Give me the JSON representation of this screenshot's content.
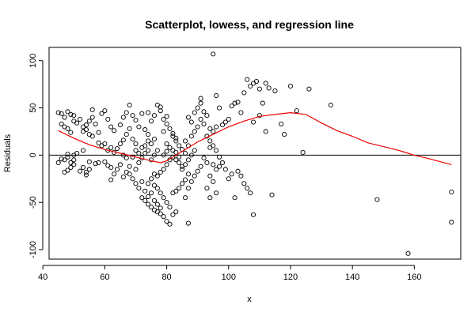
{
  "chart_data": {
    "type": "scatter",
    "title": "Scatterplot, lowess, and regression line",
    "xlabel": "x",
    "ylabel": "Residuals",
    "xlim": [
      42,
      175
    ],
    "ylim": [
      -110,
      114
    ],
    "xticks": [
      40,
      60,
      80,
      100,
      120,
      140,
      160
    ],
    "yticks": [
      -100,
      -50,
      0,
      50,
      100
    ],
    "grid": false,
    "regression_line_y": 0,
    "colors": {
      "points": "#000000",
      "lowess": "#ee0000",
      "regression": "#000000"
    },
    "points": [
      [
        45,
        45
      ],
      [
        46,
        44
      ],
      [
        47,
        40
      ],
      [
        48,
        46
      ],
      [
        49,
        43
      ],
      [
        50,
        42
      ],
      [
        50,
        36
      ],
      [
        52,
        38
      ],
      [
        46,
        33
      ],
      [
        47,
        30
      ],
      [
        48,
        28
      ],
      [
        49,
        24
      ],
      [
        51,
        34
      ],
      [
        53,
        30
      ],
      [
        54,
        27
      ],
      [
        55,
        22
      ],
      [
        53,
        25
      ],
      [
        56,
        20
      ],
      [
        54,
        32
      ],
      [
        55,
        36
      ],
      [
        56,
        40
      ],
      [
        57,
        33
      ],
      [
        58,
        24
      ],
      [
        56,
        48
      ],
      [
        59,
        44
      ],
      [
        60,
        47
      ],
      [
        61,
        38
      ],
      [
        62,
        30
      ],
      [
        63,
        26
      ],
      [
        58,
        13
      ],
      [
        59,
        10
      ],
      [
        60,
        12
      ],
      [
        61,
        5
      ],
      [
        62,
        8
      ],
      [
        63,
        3
      ],
      [
        60,
        -7
      ],
      [
        61,
        -11
      ],
      [
        62,
        -13
      ],
      [
        58,
        -8
      ],
      [
        57,
        -9
      ],
      [
        55,
        -7
      ],
      [
        53,
        -13
      ],
      [
        52,
        -17
      ],
      [
        54,
        -21
      ],
      [
        55,
        -15
      ],
      [
        54,
        -18
      ],
      [
        47,
        -5
      ],
      [
        48,
        -2
      ],
      [
        49,
        -8
      ],
      [
        50,
        -10
      ],
      [
        46,
        -4
      ],
      [
        45,
        -8
      ],
      [
        48,
        -16
      ],
      [
        47,
        -18
      ],
      [
        49,
        -13
      ],
      [
        50,
        -5
      ],
      [
        51,
        2
      ],
      [
        53,
        5
      ],
      [
        50,
        0
      ],
      [
        48,
        1
      ],
      [
        64,
        7
      ],
      [
        65,
        12
      ],
      [
        66,
        16
      ],
      [
        67,
        22
      ],
      [
        65,
        32
      ],
      [
        66,
        40
      ],
      [
        67,
        45
      ],
      [
        68,
        53
      ],
      [
        69,
        42
      ],
      [
        70,
        37
      ],
      [
        71,
        30
      ],
      [
        68,
        28
      ],
      [
        69,
        17
      ],
      [
        70,
        12
      ],
      [
        66,
        0
      ],
      [
        67,
        -3
      ],
      [
        65,
        -10
      ],
      [
        64,
        -15
      ],
      [
        63,
        -20
      ],
      [
        62,
        -26
      ],
      [
        66,
        -23
      ],
      [
        67,
        -18
      ],
      [
        68,
        -20
      ],
      [
        69,
        -25
      ],
      [
        70,
        -30
      ],
      [
        71,
        -35
      ],
      [
        72,
        -28
      ],
      [
        70,
        -15
      ],
      [
        68,
        -12
      ],
      [
        71,
        -8
      ],
      [
        72,
        -3
      ],
      [
        73,
        2
      ],
      [
        74,
        5
      ],
      [
        72,
        8
      ],
      [
        71,
        2
      ],
      [
        69,
        -2
      ],
      [
        70,
        5
      ],
      [
        73,
        10
      ],
      [
        74,
        15
      ],
      [
        75,
        12
      ],
      [
        76,
        17
      ],
      [
        74,
        22
      ],
      [
        73,
        27
      ],
      [
        75,
        36
      ],
      [
        74,
        45
      ],
      [
        72,
        44
      ],
      [
        76,
        42
      ],
      [
        77,
        53
      ],
      [
        78,
        47
      ],
      [
        79,
        38
      ],
      [
        80,
        33
      ],
      [
        81,
        28
      ],
      [
        79,
        25
      ],
      [
        82,
        20
      ],
      [
        83,
        15
      ],
      [
        80,
        12
      ],
      [
        81,
        8
      ],
      [
        82,
        5
      ],
      [
        83,
        3
      ],
      [
        84,
        -2
      ],
      [
        81,
        -5
      ],
      [
        80,
        -10
      ],
      [
        79,
        -15
      ],
      [
        78,
        -18
      ],
      [
        77,
        -22
      ],
      [
        76,
        -20
      ],
      [
        75,
        -25
      ],
      [
        74,
        -30
      ],
      [
        73,
        -38
      ],
      [
        72,
        -45
      ],
      [
        73,
        -48
      ],
      [
        74,
        -52
      ],
      [
        75,
        -55
      ],
      [
        76,
        -58
      ],
      [
        77,
        -60
      ],
      [
        78,
        -62
      ],
      [
        79,
        -65
      ],
      [
        80,
        -70
      ],
      [
        81,
        -73
      ],
      [
        82,
        -63
      ],
      [
        83,
        -60
      ],
      [
        81,
        -55
      ],
      [
        80,
        -50
      ],
      [
        79,
        -45
      ],
      [
        78,
        -40
      ],
      [
        77,
        -35
      ],
      [
        76,
        -32
      ],
      [
        75,
        -40
      ],
      [
        74,
        -44
      ],
      [
        76,
        -48
      ],
      [
        77,
        -52
      ],
      [
        78,
        -56
      ],
      [
        82,
        -40
      ],
      [
        83,
        -38
      ],
      [
        84,
        -35
      ],
      [
        85,
        -30
      ],
      [
        86,
        -26
      ],
      [
        87,
        -20
      ],
      [
        85,
        -15
      ],
      [
        86,
        -10
      ],
      [
        87,
        -5
      ],
      [
        88,
        0
      ],
      [
        89,
        5
      ],
      [
        87,
        10
      ],
      [
        86,
        15
      ],
      [
        88,
        20
      ],
      [
        89,
        25
      ],
      [
        90,
        30
      ],
      [
        88,
        35
      ],
      [
        87,
        40
      ],
      [
        89,
        45
      ],
      [
        90,
        50
      ],
      [
        91,
        55
      ],
      [
        91,
        60
      ],
      [
        92,
        46
      ],
      [
        93,
        42
      ],
      [
        91,
        38
      ],
      [
        92,
        33
      ],
      [
        94,
        28
      ],
      [
        95,
        25
      ],
      [
        93,
        20
      ],
      [
        94,
        15
      ],
      [
        95,
        10
      ],
      [
        96,
        5
      ],
      [
        94,
        8
      ],
      [
        92,
        -3
      ],
      [
        93,
        -8
      ],
      [
        91,
        -12
      ],
      [
        90,
        -17
      ],
      [
        89,
        -22
      ],
      [
        88,
        -28
      ],
      [
        87,
        -35
      ],
      [
        86,
        -45
      ],
      [
        87,
        -72
      ],
      [
        85,
        -12
      ],
      [
        84,
        -8
      ],
      [
        83,
        -5
      ],
      [
        82,
        -2
      ],
      [
        86,
        2
      ],
      [
        85,
        6
      ],
      [
        84,
        10
      ],
      [
        83,
        18
      ],
      [
        82,
        23
      ],
      [
        80,
        41
      ],
      [
        78,
        51
      ],
      [
        77,
        5
      ],
      [
        76,
        0
      ],
      [
        75,
        -5
      ],
      [
        79,
        0
      ],
      [
        80,
        4
      ],
      [
        95,
        -10
      ],
      [
        96,
        -15
      ],
      [
        94,
        -22
      ],
      [
        95,
        -28
      ],
      [
        93,
        -35
      ],
      [
        96,
        -40
      ],
      [
        94,
        -45
      ],
      [
        97,
        -12
      ],
      [
        98,
        -8
      ],
      [
        97,
        -2
      ],
      [
        96,
        30
      ],
      [
        98,
        32
      ],
      [
        99,
        35
      ],
      [
        100,
        38
      ],
      [
        101,
        52
      ],
      [
        102,
        55
      ],
      [
        103,
        56
      ],
      [
        104,
        45
      ],
      [
        105,
        66
      ],
      [
        106,
        80
      ],
      [
        107,
        73
      ],
      [
        108,
        76
      ],
      [
        109,
        78
      ],
      [
        110,
        70
      ],
      [
        111,
        55
      ],
      [
        112,
        76
      ],
      [
        113,
        71
      ],
      [
        110,
        42
      ],
      [
        108,
        35
      ],
      [
        112,
        25
      ],
      [
        103,
        -17
      ],
      [
        104,
        -22
      ],
      [
        105,
        -30
      ],
      [
        106,
        -35
      ],
      [
        107,
        -40
      ],
      [
        108,
        -63
      ],
      [
        102,
        -45
      ],
      [
        101,
        -20
      ],
      [
        100,
        -25
      ],
      [
        99,
        -15
      ],
      [
        95,
        107
      ],
      [
        96,
        63
      ],
      [
        97,
        50
      ],
      [
        114,
        -42
      ],
      [
        115,
        68
      ],
      [
        117,
        33
      ],
      [
        118,
        22
      ],
      [
        120,
        73
      ],
      [
        122,
        47
      ],
      [
        124,
        3
      ],
      [
        126,
        70
      ],
      [
        133,
        53
      ],
      [
        148,
        -47
      ],
      [
        158,
        -104
      ],
      [
        172,
        -39
      ],
      [
        172,
        -71
      ]
    ],
    "lowess": [
      [
        45,
        26
      ],
      [
        50,
        18
      ],
      [
        55,
        11
      ],
      [
        60,
        6
      ],
      [
        65,
        2
      ],
      [
        70,
        -2
      ],
      [
        75,
        -6
      ],
      [
        78,
        -8
      ],
      [
        80,
        -6
      ],
      [
        85,
        4
      ],
      [
        90,
        14
      ],
      [
        95,
        22
      ],
      [
        100,
        30
      ],
      [
        105,
        36
      ],
      [
        110,
        41
      ],
      [
        115,
        43
      ],
      [
        120,
        45
      ],
      [
        125,
        43
      ],
      [
        130,
        34
      ],
      [
        135,
        26
      ],
      [
        140,
        20
      ],
      [
        145,
        13
      ],
      [
        150,
        9
      ],
      [
        155,
        5
      ],
      [
        160,
        0
      ],
      [
        165,
        -4
      ],
      [
        172,
        -10
      ]
    ]
  }
}
